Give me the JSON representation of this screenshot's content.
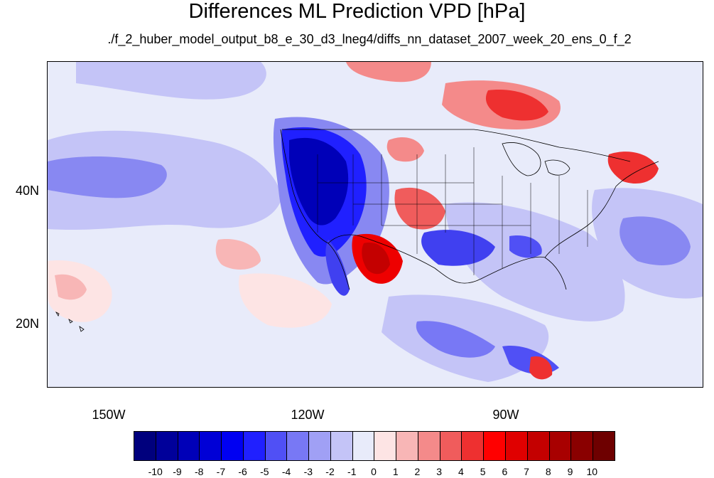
{
  "title": "Differences ML Prediction VPD [hPa]",
  "subtitle": "./f_2_huber_model_output_b8_e_30_d3_lneg4/diffs_nn_dataset_2007_week_20_ens_0_f_2",
  "map": {
    "y_labels": [
      "40N",
      "20N"
    ],
    "x_labels": [
      "150W",
      "120W",
      "90W"
    ]
  },
  "colorbar": {
    "labels": [
      "-10",
      "-9",
      "-8",
      "-7",
      "-6",
      "-5",
      "-4",
      "-3",
      "-2",
      "-1",
      "0",
      "1",
      "2",
      "3",
      "4",
      "5",
      "6",
      "7",
      "8",
      "9",
      "10"
    ],
    "colors": [
      "#00007d",
      "#00009a",
      "#0000b8",
      "#0000d6",
      "#0000f2",
      "#2020ff",
      "#5050f5",
      "#7878f5",
      "#a0a0f5",
      "#c4c4f7",
      "#e8ebfa",
      "#fde4e4",
      "#f8b6b6",
      "#f48a8a",
      "#f05c5c",
      "#ee3030",
      "#ff0000",
      "#e00000",
      "#c40000",
      "#a80000",
      "#8a0000",
      "#6e0000"
    ]
  },
  "colors": {
    "neutral": "#e8ebfa",
    "strong_blue": "#0000e0",
    "strong_red": "#ee0000"
  }
}
